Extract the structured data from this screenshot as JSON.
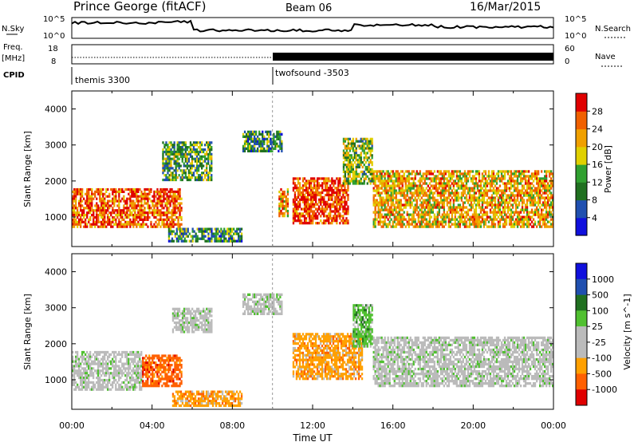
{
  "header": {
    "station": "Prince George (fitACF)",
    "beam": "Beam 06",
    "date": "16/Mar/2015"
  },
  "side_labels": {
    "nsky": "N.Sky",
    "freq_line1": "Freq.",
    "freq_line2": "[MHz]",
    "cpid": "CPID",
    "nsearch": "N.Search",
    "nave": "Nave"
  },
  "strip_ticks": {
    "nsky_top": "10^5",
    "nsky_bottom": "10^0",
    "nsearch_top": "10^5",
    "nsearch_bottom": "10^0",
    "freq_top": "18",
    "freq_bottom": "8",
    "nave_top": "60",
    "nave_bottom": "0"
  },
  "cpid_labels": [
    "themis 3300",
    "twofsound -3503"
  ],
  "colors": {
    "power": [
      "#1010dd",
      "#2050b0",
      "#207020",
      "#30a030",
      "#e0d000",
      "#f0a000",
      "#f06000",
      "#e00000"
    ],
    "velocity": [
      "#e00000",
      "#ff6000",
      "#ffa000",
      "#bbbbbb",
      "#bbbbbb",
      "#50c030",
      "#207020",
      "#2050b0",
      "#1010dd"
    ]
  },
  "chart_data": [
    {
      "type": "heatmap",
      "panel": "power",
      "ylabel": "Slant Range [km]",
      "yticks": [
        "1000",
        "2000",
        "3000",
        "4000"
      ],
      "ylim": [
        180,
        4500
      ],
      "xlim": [
        0,
        24
      ],
      "colorbar": {
        "label": "Power [dB]",
        "ticks": [
          "4",
          "8",
          "12",
          "16",
          "20",
          "24",
          "28"
        ],
        "range": [
          0,
          30
        ]
      },
      "echo_regions": [
        {
          "t0": 0.0,
          "t1": 5.5,
          "r0": 700,
          "r1": 1800,
          "value": 24
        },
        {
          "t0": 4.8,
          "t1": 8.5,
          "r0": 300,
          "r1": 700,
          "value": 10
        },
        {
          "t0": 4.5,
          "t1": 7.0,
          "r0": 2000,
          "r1": 3100,
          "value": 12
        },
        {
          "t0": 8.5,
          "t1": 10.5,
          "r0": 2800,
          "r1": 3400,
          "value": 10
        },
        {
          "t0": 10.3,
          "t1": 10.8,
          "r0": 1000,
          "r1": 1800,
          "value": 22
        },
        {
          "t0": 11.0,
          "t1": 13.8,
          "r0": 800,
          "r1": 2100,
          "value": 26
        },
        {
          "t0": 13.5,
          "t1": 15.0,
          "r0": 1900,
          "r1": 3200,
          "value": 14
        },
        {
          "t0": 15.0,
          "t1": 24.0,
          "r0": 700,
          "r1": 2300,
          "value": 20
        }
      ]
    },
    {
      "type": "heatmap",
      "panel": "velocity",
      "ylabel": "Slant Range [km]",
      "yticks": [
        "1000",
        "2000",
        "3000",
        "4000"
      ],
      "ylim": [
        180,
        4500
      ],
      "xlim": [
        0,
        24
      ],
      "xlabel": "Time UT",
      "xticks": [
        "00:00",
        "04:00",
        "08:00",
        "12:00",
        "16:00",
        "20:00",
        "00:00"
      ],
      "colorbar": {
        "label": "Velocity [m s^-1]",
        "ticks": [
          "1000",
          "500",
          "100",
          "25",
          "-25",
          "-100",
          "-500",
          "-1000"
        ]
      },
      "echo_regions": [
        {
          "t0": 0.0,
          "t1": 3.5,
          "r0": 700,
          "r1": 1800,
          "value": 0
        },
        {
          "t0": 3.5,
          "t1": 5.5,
          "r0": 800,
          "r1": 1700,
          "value": -700
        },
        {
          "t0": 5.0,
          "t1": 8.5,
          "r0": 250,
          "r1": 700,
          "value": -150
        },
        {
          "t0": 5.0,
          "t1": 7.0,
          "r0": 2300,
          "r1": 3000,
          "value": 0
        },
        {
          "t0": 8.5,
          "t1": 10.5,
          "r0": 2800,
          "r1": 3400,
          "value": 0
        },
        {
          "t0": 11.0,
          "t1": 14.5,
          "r0": 1000,
          "r1": 2300,
          "value": -200
        },
        {
          "t0": 14.0,
          "t1": 15.0,
          "r0": 1900,
          "r1": 3100,
          "value": 60
        },
        {
          "t0": 15.0,
          "t1": 24.0,
          "r0": 800,
          "r1": 2200,
          "value": 0
        }
      ]
    }
  ]
}
